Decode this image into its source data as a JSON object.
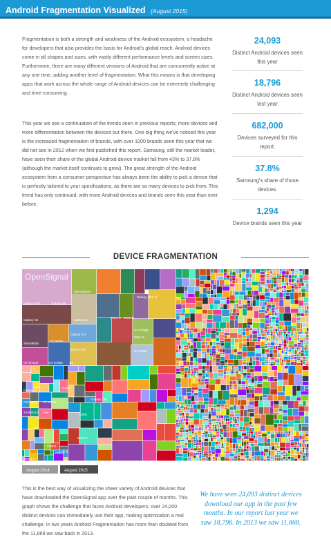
{
  "header": {
    "title": "Android Fragmentation Visualized",
    "date": "(August 2015)",
    "color": "#1c9ad6"
  },
  "intro": {
    "paragraph_1": "Fragmentation is both a strength and weakness of the Android ecosystem, a headache for developers that also provides the basis for Android's global reach. Android devices come in all shapes and sizes, with vastly different performance levels and screen sizes. Furthermore, there are many different versions of Android that are concurrently active at any one time, adding another level of fragmentation. What this means is that developing apps that work across the whole range of Android devices can be extremely challenging and time-consuming.",
    "paragraph_2": "This year we see a continuation of the trends seen in previous reports; more devices and more differentiation between the devices out there. One big thing we've noticed this year is the increased fragmentation of brands, with over 1000 brands seen this year that we did not see in 2012 when we first published this report. Samsung, still the market leader, have seen their share of the global Android device market fall from 43% to 37.8% (although the market itself continues to grow). The great strength of the Android ecosystem from a consumer perspective has always been the ability to pick a device that is perfectly tailored to your specifications, as there are so many devices to pick from. This trend has only continued, with more Android devices and brands seen this year than ever before."
  },
  "stats": [
    {
      "value": "24,093",
      "label": "Distinct Android devices seen this year"
    },
    {
      "value": "18,796",
      "label": "Distinct Android devices seen last year"
    },
    {
      "value": "682,000",
      "label": "Devices surveyed for this report."
    },
    {
      "value": "37.8%",
      "label": "Samsung's share of those devices."
    },
    {
      "value": "1,294",
      "label": "Device brands seen this year"
    }
  ],
  "section_title": "DEVICE FRAGMENTATION",
  "treemap": {
    "watermark": "OpenSignal",
    "labels": [
      "Galaxy S III",
      "Galaxy S5",
      "SM-G530H",
      "Galaxy S4",
      "Galaxy S4",
      "Galaxy Note 3",
      "Moto G",
      "Moto G",
      "SM-N9005",
      "GT-I9060",
      "Galaxy S 5",
      "GT-S7580",
      "SM-G7102",
      "Moto G",
      "GT-N7100",
      "GT-S7582",
      "S3",
      "GT-I9082",
      "C6903",
      "Galaxy Y",
      "One (M8)",
      "GT-I9300",
      "ZenFone 5",
      "One",
      "XL",
      "D5803",
      "Galaxy S",
      "Moto E",
      "Nexus 5",
      "A369i",
      "Galaxy Tab"
    ],
    "palette": [
      "#e94b3c",
      "#f5a623",
      "#f8e71c",
      "#7ed321",
      "#417505",
      "#4a90e2",
      "#50e3c2",
      "#9013fe",
      "#bd10e0",
      "#d0021b",
      "#8b572a",
      "#b8e986",
      "#1c9ad6",
      "#ff6f91",
      "#2c3e50",
      "#e67e22",
      "#16a085",
      "#c0392b",
      "#f39c12",
      "#27ae60",
      "#8e44ad",
      "#d35400",
      "#3498db",
      "#f1c40f",
      "#e84393",
      "#00b894",
      "#6c5ce7",
      "#fdcb6e",
      "#a29bfe",
      "#55efc4",
      "#fab1a0",
      "#74b9ff",
      "#ff7675",
      "#81ecec",
      "#2d3436",
      "#636e72",
      "#0984e3",
      "#e17055",
      "#00cec9",
      "#b2bec3"
    ]
  },
  "toggle": {
    "option_2014": "August 2014",
    "option_2015": "August 2015"
  },
  "closing": {
    "paragraph": "This is the best way of visualizing the sheer variety of Android devices that have downloaded the OpenSignal app over the past couple of months. This graph shows the challenge that faces Android developers; over 24,000 distinct devices can immediately use their app, making optimization a real challenge. In two years Android Fragmentation has more than doubled from the 11,868 we saw back in 2013.",
    "quote": "We have seen 24,093 distinct devices download our app in the past few months. In our report last year we saw 18,796. In 2013 we saw 11,868."
  }
}
